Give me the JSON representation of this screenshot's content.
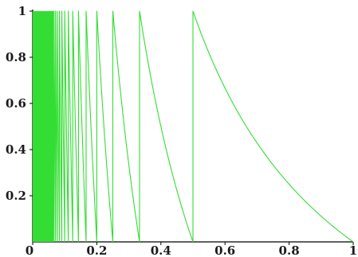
{
  "chart_data": {
    "type": "line",
    "title": "",
    "xlabel": "",
    "ylabel": "",
    "xlim": [
      0,
      1
    ],
    "ylim": [
      0,
      1
    ],
    "grid": false,
    "x_ticks": [
      {
        "value": 0,
        "label": "0"
      },
      {
        "value": 0.2,
        "label": "0.2"
      },
      {
        "value": 0.4,
        "label": "0.4"
      },
      {
        "value": 0.6,
        "label": "0.6"
      },
      {
        "value": 0.8,
        "label": "0.8"
      },
      {
        "value": 1,
        "label": "1"
      }
    ],
    "y_ticks": [
      {
        "value": 0.2,
        "label": "0.2"
      },
      {
        "value": 0.4,
        "label": "0.4"
      },
      {
        "value": 0.6,
        "label": "0.6"
      },
      {
        "value": 0.8,
        "label": "0.8"
      },
      {
        "value": 1,
        "label": "1"
      }
    ],
    "series": [
      {
        "function": "sawtooth decaying segments on intervals [1/(n+1), 1/n], from 1 at x=1/(n+1) down to 0 at x=1/n",
        "color": "#33dd33",
        "dense_region_end": 0.065
      }
    ]
  }
}
